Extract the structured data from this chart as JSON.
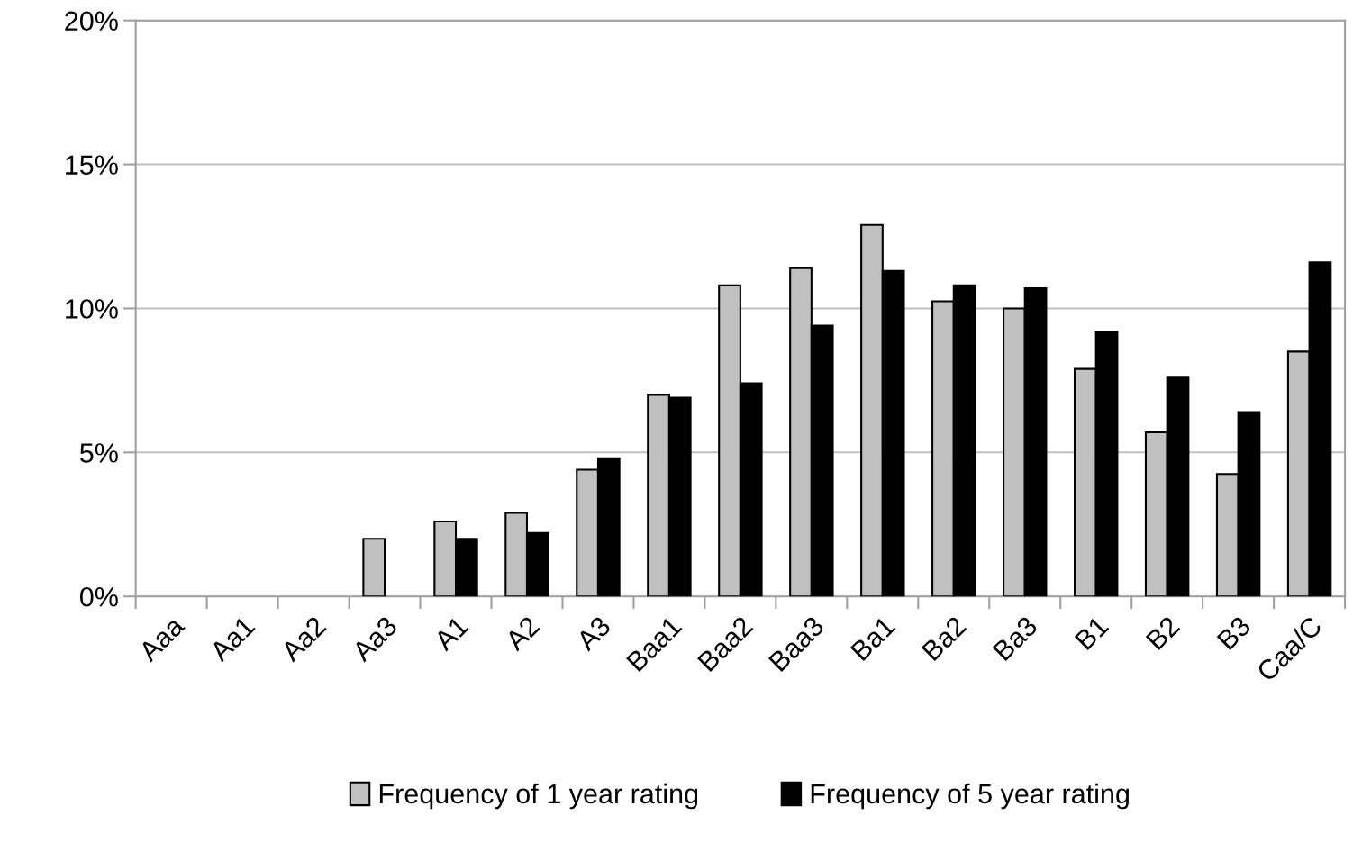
{
  "chart_data": {
    "type": "bar",
    "categories": [
      "Aaa",
      "Aa1",
      "Aa2",
      "Aa3",
      "A1",
      "A2",
      "A3",
      "Baa1",
      "Baa2",
      "Baa3",
      "Ba1",
      "Ba2",
      "Ba3",
      "B1",
      "B2",
      "B3",
      "Caa/C"
    ],
    "series": [
      {
        "name": "Frequency of 1 year rating",
        "color": "#c0c0c0",
        "values": [
          null,
          null,
          null,
          2.0,
          2.6,
          2.9,
          4.4,
          7.0,
          10.8,
          11.4,
          12.9,
          10.25,
          10.0,
          7.9,
          5.7,
          4.25,
          8.5
        ]
      },
      {
        "name": "Frequency of 5 year rating",
        "color": "#000000",
        "values": [
          null,
          null,
          null,
          null,
          2.0,
          2.2,
          4.8,
          6.9,
          7.4,
          9.4,
          11.3,
          10.8,
          10.7,
          9.2,
          7.6,
          6.4,
          11.6
        ]
      }
    ],
    "ylim": [
      0,
      20
    ],
    "yticks": [
      {
        "value": 0,
        "label": "0%"
      },
      {
        "value": 5,
        "label": "5%"
      },
      {
        "value": 10,
        "label": "10%"
      },
      {
        "value": 15,
        "label": "15%"
      },
      {
        "value": 20,
        "label": "20%"
      }
    ],
    "grid": "y",
    "legend": "bottom"
  }
}
